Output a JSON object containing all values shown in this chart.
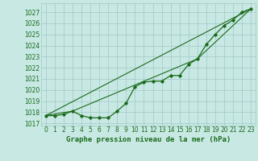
{
  "xlabel": "Graphe pression niveau de la mer (hPa)",
  "xlim": [
    -0.5,
    23.5
  ],
  "ylim": [
    1016.8,
    1027.8
  ],
  "yticks": [
    1017,
    1018,
    1019,
    1020,
    1021,
    1022,
    1023,
    1024,
    1025,
    1026,
    1027
  ],
  "xticks": [
    0,
    1,
    2,
    3,
    4,
    5,
    6,
    7,
    8,
    9,
    10,
    11,
    12,
    13,
    14,
    15,
    16,
    17,
    18,
    19,
    20,
    21,
    22,
    23
  ],
  "background_color": "#c8e8e4",
  "grid_color": "#a0c8c4",
  "line_color": "#1a6b1a",
  "line1_x": [
    0,
    1,
    2,
    3,
    4,
    5,
    6,
    7,
    8,
    9,
    10,
    11,
    12,
    13,
    14,
    15,
    16,
    17,
    18,
    19,
    20,
    21,
    22,
    23
  ],
  "line1_y": [
    1017.7,
    1017.7,
    1017.8,
    1018.1,
    1017.7,
    1017.5,
    1017.5,
    1017.5,
    1018.1,
    1018.8,
    1020.3,
    1020.7,
    1020.8,
    1020.8,
    1021.3,
    1021.3,
    1022.3,
    1022.8,
    1024.1,
    1025.0,
    1025.8,
    1026.3,
    1027.0,
    1027.3
  ],
  "line2_x": [
    0,
    23
  ],
  "line2_y": [
    1017.7,
    1027.3
  ],
  "line3_x": [
    0,
    3,
    17,
    23
  ],
  "line3_y": [
    1017.7,
    1018.1,
    1022.8,
    1027.3
  ],
  "font_color": "#1a6b1a",
  "label_fontsize": 6.5,
  "tick_fontsize": 5.5
}
